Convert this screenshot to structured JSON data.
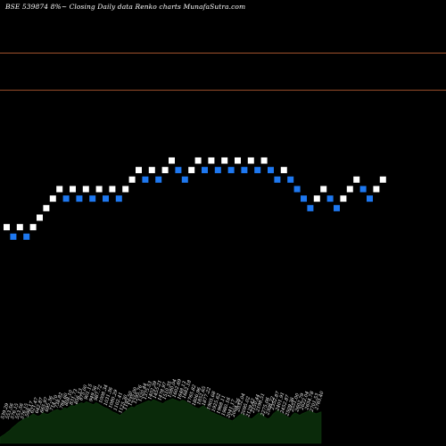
{
  "chart_data": {
    "type": "renko",
    "title": "BSE 539874  8%~  Closing Daily data  Renko  charts MunafaSutra.com",
    "colors": {
      "background": "#000000",
      "up_brick": "#ffffff",
      "down_brick": "#1e78f0",
      "level_line": "#a0522d",
      "volume_fill": "#0a2a0a"
    },
    "ylim": [
      0,
      24
    ],
    "levels": [
      20.3,
      16.4
    ],
    "bricks": [
      {
        "x": 1,
        "level": 2,
        "dir": "up"
      },
      {
        "x": 2,
        "level": 1,
        "dir": "down"
      },
      {
        "x": 3,
        "level": 2,
        "dir": "up"
      },
      {
        "x": 4,
        "level": 1,
        "dir": "down"
      },
      {
        "x": 5,
        "level": 2,
        "dir": "up"
      },
      {
        "x": 6,
        "level": 3,
        "dir": "up"
      },
      {
        "x": 7,
        "level": 4,
        "dir": "up"
      },
      {
        "x": 8,
        "level": 5,
        "dir": "up"
      },
      {
        "x": 9,
        "level": 6,
        "dir": "up"
      },
      {
        "x": 10,
        "level": 5,
        "dir": "down"
      },
      {
        "x": 11,
        "level": 6,
        "dir": "up"
      },
      {
        "x": 12,
        "level": 5,
        "dir": "down"
      },
      {
        "x": 13,
        "level": 6,
        "dir": "up"
      },
      {
        "x": 14,
        "level": 5,
        "dir": "down"
      },
      {
        "x": 15,
        "level": 6,
        "dir": "up"
      },
      {
        "x": 16,
        "level": 5,
        "dir": "down"
      },
      {
        "x": 17,
        "level": 6,
        "dir": "up"
      },
      {
        "x": 18,
        "level": 5,
        "dir": "down"
      },
      {
        "x": 19,
        "level": 6,
        "dir": "up"
      },
      {
        "x": 20,
        "level": 7,
        "dir": "up"
      },
      {
        "x": 21,
        "level": 8,
        "dir": "up"
      },
      {
        "x": 22,
        "level": 7,
        "dir": "down"
      },
      {
        "x": 23,
        "level": 8,
        "dir": "up"
      },
      {
        "x": 24,
        "level": 7,
        "dir": "down"
      },
      {
        "x": 25,
        "level": 8,
        "dir": "up"
      },
      {
        "x": 26,
        "level": 9,
        "dir": "up"
      },
      {
        "x": 27,
        "level": 8,
        "dir": "down"
      },
      {
        "x": 28,
        "level": 7,
        "dir": "down"
      },
      {
        "x": 29,
        "level": 8,
        "dir": "up"
      },
      {
        "x": 30,
        "level": 9,
        "dir": "up"
      },
      {
        "x": 31,
        "level": 8,
        "dir": "down"
      },
      {
        "x": 32,
        "level": 9,
        "dir": "up"
      },
      {
        "x": 33,
        "level": 8,
        "dir": "down"
      },
      {
        "x": 34,
        "level": 9,
        "dir": "up"
      },
      {
        "x": 35,
        "level": 8,
        "dir": "down"
      },
      {
        "x": 36,
        "level": 9,
        "dir": "up"
      },
      {
        "x": 37,
        "level": 8,
        "dir": "down"
      },
      {
        "x": 38,
        "level": 9,
        "dir": "up"
      },
      {
        "x": 39,
        "level": 8,
        "dir": "down"
      },
      {
        "x": 40,
        "level": 9,
        "dir": "up"
      },
      {
        "x": 41,
        "level": 8,
        "dir": "down"
      },
      {
        "x": 42,
        "level": 7,
        "dir": "down"
      },
      {
        "x": 43,
        "level": 8,
        "dir": "up"
      },
      {
        "x": 44,
        "level": 7,
        "dir": "down"
      },
      {
        "x": 45,
        "level": 6,
        "dir": "down"
      },
      {
        "x": 46,
        "level": 5,
        "dir": "down"
      },
      {
        "x": 47,
        "level": 4,
        "dir": "down"
      },
      {
        "x": 48,
        "level": 5,
        "dir": "up"
      },
      {
        "x": 49,
        "level": 6,
        "dir": "up"
      },
      {
        "x": 50,
        "level": 5,
        "dir": "down"
      },
      {
        "x": 51,
        "level": 4,
        "dir": "down"
      },
      {
        "x": 52,
        "level": 5,
        "dir": "up"
      },
      {
        "x": 53,
        "level": 6,
        "dir": "up"
      },
      {
        "x": 54,
        "level": 7,
        "dir": "up"
      },
      {
        "x": 55,
        "level": 6,
        "dir": "down"
      },
      {
        "x": 56,
        "level": 5,
        "dir": "down"
      },
      {
        "x": 57,
        "level": 6,
        "dir": "up"
      },
      {
        "x": 58,
        "level": 7,
        "dir": "up"
      }
    ],
    "volume": {
      "ylim": [
        0,
        100
      ],
      "values": [
        12,
        15,
        18,
        22,
        25,
        30,
        34,
        38,
        42,
        45,
        48,
        50,
        52,
        55,
        58,
        55,
        53,
        56,
        60,
        58,
        57,
        60,
        63,
        65,
        67,
        64,
        66,
        70,
        68,
        72,
        75,
        73,
        76,
        78,
        80,
        78,
        82,
        80,
        78,
        76,
        80,
        78,
        75,
        72,
        70,
        68,
        65,
        62,
        60,
        58,
        55,
        58,
        62,
        66,
        70,
        72,
        70,
        74,
        76,
        78,
        80,
        82,
        84,
        82,
        86,
        84,
        82,
        80,
        78,
        82,
        84,
        86,
        88,
        86,
        84,
        82,
        85,
        84,
        80,
        78,
        75,
        72,
        70,
        68,
        72,
        74,
        70,
        66,
        62,
        60,
        58,
        56,
        54,
        52,
        50,
        48,
        46,
        44,
        48,
        52,
        56,
        58,
        55,
        52,
        50,
        48,
        52,
        56,
        60,
        58,
        54,
        50,
        48,
        52,
        58,
        62,
        66,
        60,
        58,
        55,
        52,
        50,
        56,
        60,
        58,
        55,
        58,
        60,
        62,
        64,
        62,
        60,
        58,
        60,
        62
      ],
      "labels": [
        "539.29",
        "553.56",
        "576.15",
        "553.56",
        "576.15",
        "598.17",
        "621.47",
        "642.87",
        "665.97",
        "695.36",
        "714.70",
        "738.82",
        "784.60",
        "808.10",
        "831.73",
        "856.13",
        "875.00",
        "901.15",
        "949.56",
        "987.72",
        "1008.34",
        "1031.36",
        "1080.29",
        "1102.41",
        "1125.30",
        "1193.50",
        "1235.00",
        "1295.76",
        "1320.44",
        "1375.53",
        "1402.39",
        "1455.21",
        "1478.97",
        "1510.35",
        "1580.04",
        "1602.69",
        "1648.13",
        "1682.18",
        "1765.82",
        "1806.96",
        "1852.65",
        "1877.22",
        "1905.68",
        "1925.62",
        "1968.11",
        "1980.16",
        "2041.17",
        "2004.26",
        "2032.04",
        "2095.02",
        "2129.42",
        "2150.44",
        "2198.51",
        "2275.06",
        "2308.22",
        "2352.87",
        "2401.91",
        "2452.87",
        "2509.36",
        "2551.00",
        "2602.79",
        "2622.04",
        "2654.78",
        "2701.53",
        "2765.40"
      ]
    }
  }
}
